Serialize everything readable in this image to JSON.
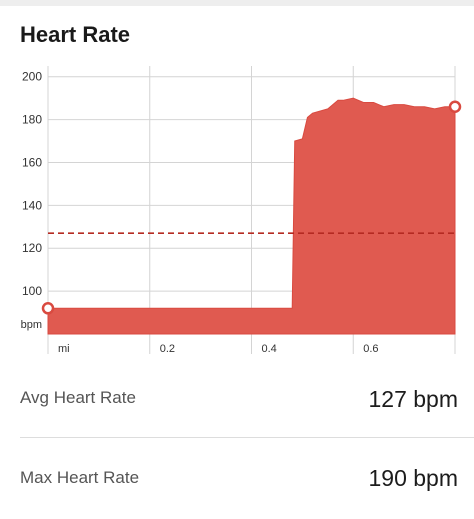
{
  "card": {
    "title": "Heart Rate"
  },
  "stats": {
    "avg_label": "Avg Heart Rate",
    "avg_value": "127 bpm",
    "max_label": "Max Heart Rate",
    "max_value": "190 bpm"
  },
  "colors": {
    "fill": "#e05a50",
    "stroke": "#d94a40",
    "avg_line": "#b52a22",
    "grid": "#d4d4d4"
  },
  "chart_data": {
    "type": "area",
    "xlabel": "mi",
    "ylabel": "bpm",
    "x_ticks": [
      0.2,
      0.4,
      0.6
    ],
    "x_tick_labels": [
      "0.2",
      "0.4",
      "0.6"
    ],
    "y_ticks": [
      100,
      120,
      140,
      160,
      180,
      200
    ],
    "y_tick_labels": [
      "100",
      "120",
      "140",
      "160",
      "180",
      "200"
    ],
    "xlim": [
      0,
      0.8
    ],
    "ylim": [
      80,
      205
    ],
    "grid": true,
    "avg_value": 127,
    "series": [
      {
        "x": [
          0,
          0.48,
          0.485,
          0.5,
          0.51,
          0.52,
          0.55,
          0.57,
          0.58,
          0.6,
          0.62,
          0.64,
          0.66,
          0.68,
          0.7,
          0.72,
          0.74,
          0.76,
          0.78,
          0.8
        ],
        "y": [
          92,
          92,
          170,
          171,
          181,
          183,
          185,
          189,
          189,
          190,
          188,
          188,
          186,
          187,
          187,
          186,
          186,
          185,
          186,
          186
        ]
      }
    ]
  }
}
